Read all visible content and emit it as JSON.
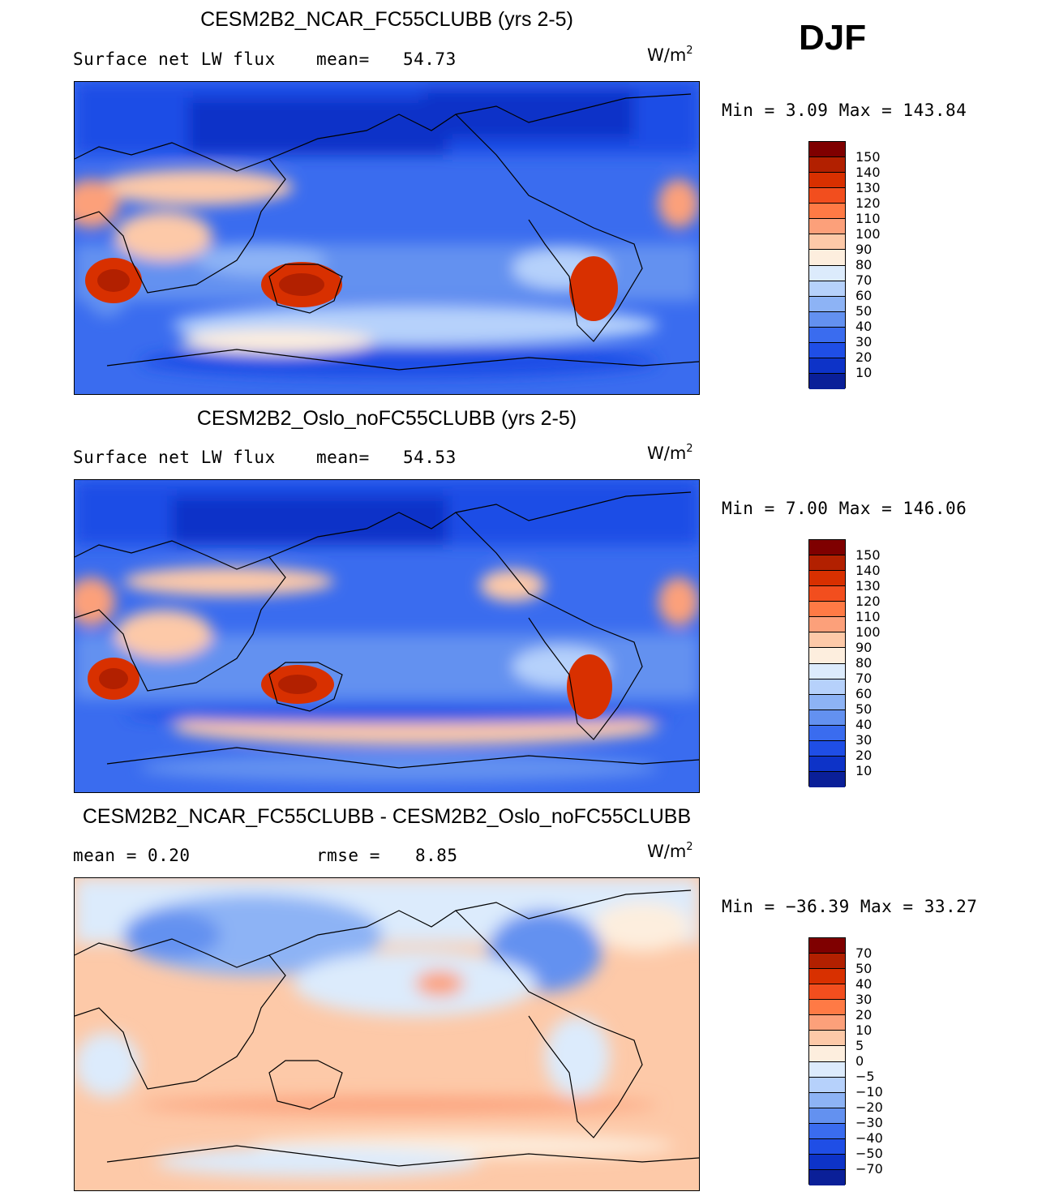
{
  "season": "DJF",
  "panels": [
    {
      "title": "CESM2B2_NCAR_FC55CLUBB (yrs 2-5)",
      "left_label": "Surface net LW flux",
      "mid_label": "mean=",
      "mid_value": "54.73",
      "units": "W/m",
      "units_exp": "2",
      "minmax": "Min =    3.09 Max = 143.84",
      "colorbar_labels": [
        "150",
        "140",
        "130",
        "120",
        "110",
        "100",
        "90",
        "80",
        "70",
        "60",
        "50",
        "40",
        "30",
        "20",
        "10"
      ],
      "colors": [
        "#7f0000",
        "#b22000",
        "#d83000",
        "#f24e1e",
        "#ff7a45",
        "#fca07a",
        "#fdc9a8",
        "#fdeede",
        "#dcebfc",
        "#b6d1fb",
        "#8db3f5",
        "#6391f0",
        "#3a6cef",
        "#1f4ee6",
        "#0d33c8",
        "#0a1f98"
      ]
    },
    {
      "title": "CESM2B2_Oslo_noFC55CLUBB (yrs 2-5)",
      "left_label": "Surface net LW flux",
      "mid_label": "mean=",
      "mid_value": "54.53",
      "units": "W/m",
      "units_exp": "2",
      "minmax": "Min =    7.00 Max = 146.06",
      "colorbar_labels": [
        "150",
        "140",
        "130",
        "120",
        "110",
        "100",
        "90",
        "80",
        "70",
        "60",
        "50",
        "40",
        "30",
        "20",
        "10"
      ],
      "colors": [
        "#7f0000",
        "#b22000",
        "#d83000",
        "#f24e1e",
        "#ff7a45",
        "#fca07a",
        "#fdc9a8",
        "#fdeede",
        "#dcebfc",
        "#b6d1fb",
        "#8db3f5",
        "#6391f0",
        "#3a6cef",
        "#1f4ee6",
        "#0d33c8",
        "#0a1f98"
      ]
    },
    {
      "title": "CESM2B2_NCAR_FC55CLUBB - CESM2B2_Oslo_noFC55CLUBB",
      "left_label": "mean =    0.20",
      "mid_label": "rmse =",
      "mid_value": "8.85",
      "units": "W/m",
      "units_exp": "2",
      "minmax": "Min = −36.39 Max =   33.27",
      "colorbar_labels": [
        "70",
        "50",
        "40",
        "30",
        "20",
        "10",
        "5",
        "0",
        "−5",
        "−10",
        "−20",
        "−30",
        "−40",
        "−50",
        "−70"
      ],
      "colors": [
        "#7f0000",
        "#b22000",
        "#d83000",
        "#f24e1e",
        "#ff7a45",
        "#fca07a",
        "#fdc9a8",
        "#fdeede",
        "#dcebfc",
        "#b6d1fb",
        "#8db3f5",
        "#6391f0",
        "#3a6cef",
        "#1f4ee6",
        "#0d33c8",
        "#0a1f98"
      ]
    }
  ]
}
